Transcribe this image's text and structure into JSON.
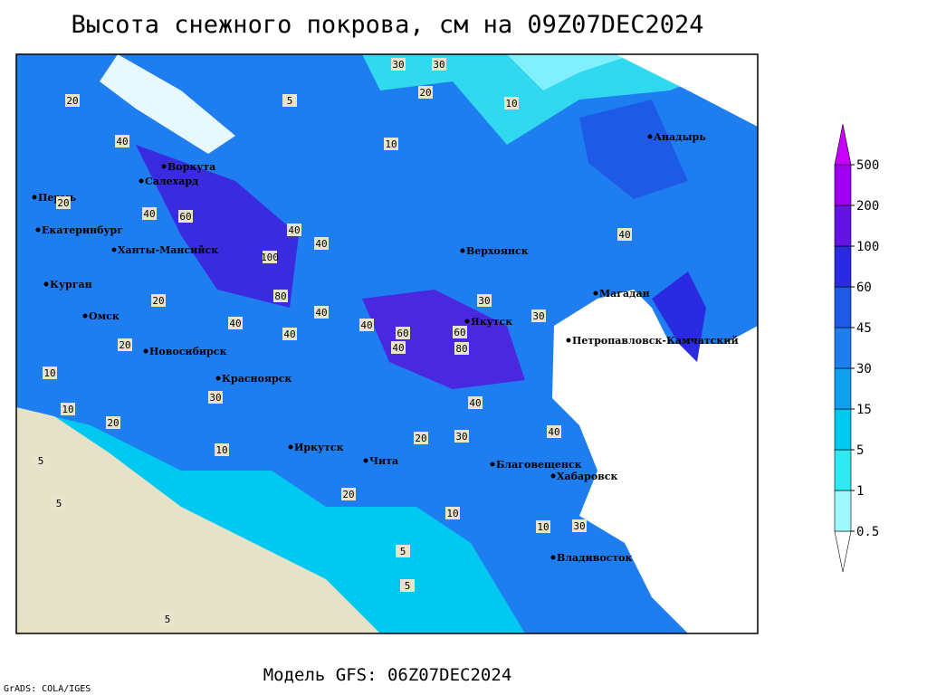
{
  "header": {
    "title": "Высота снежного покрова, см на 09Z07DEC2024"
  },
  "footer": {
    "model": "Модель GFS: 06Z07DEC2024",
    "credit": "GrADS: COLA/IGES"
  },
  "cities": [
    "Воркута",
    "Салехард",
    "Пермь",
    "Екатеринбург",
    "Ханты-Мансийск",
    "Курган",
    "Омск",
    "Новосибирск",
    "Красноярск",
    "Иркутск",
    "Чита",
    "Верхоянск",
    "Якутск",
    "Магадан",
    "Анадырь",
    "Петропавловск-Камчатский",
    "Благовещенск",
    "Хабаровск",
    "Владивосток"
  ],
  "contour_labels": [
    "20",
    "30",
    "30",
    "10",
    "5",
    "20",
    "10",
    "40",
    "40",
    "20",
    "40",
    "60",
    "40",
    "100",
    "80",
    "40",
    "40",
    "60",
    "60",
    "80",
    "40",
    "30",
    "20",
    "40",
    "40",
    "30",
    "20",
    "10",
    "10",
    "5",
    "5",
    "20",
    "30",
    "40",
    "30",
    "10",
    "5",
    "5",
    "10",
    "30",
    "40",
    "20",
    "20",
    "10",
    "5",
    "40"
  ],
  "colorbar": {
    "levels": [
      0.5,
      1,
      5,
      15,
      30,
      45,
      60,
      100,
      200,
      500
    ],
    "colors": [
      "#ffffff",
      "#a0f8ff",
      "#30e8f0",
      "#00c8f0",
      "#10a0f0",
      "#1e7ef0",
      "#1e5ae6",
      "#2a2ae0",
      "#6414e0",
      "#a000f0",
      "#c800ff"
    ]
  }
}
